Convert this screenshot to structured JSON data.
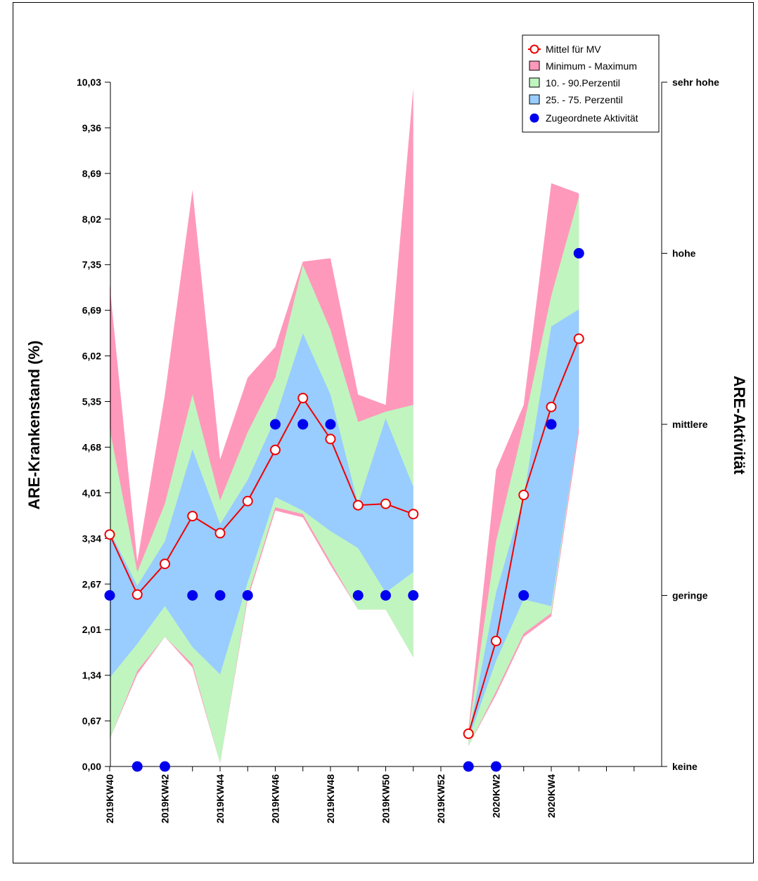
{
  "chart_data": {
    "type": "area",
    "xlabel": "",
    "ylabel": "ARE-Krankenstand (%)",
    "y2label": "ARE-Aktivität",
    "ylim": [
      0,
      10.03
    ],
    "y_ticks": [
      "0,00",
      "0,67",
      "1,34",
      "2,01",
      "2,67",
      "3,34",
      "4,01",
      "4,68",
      "5,35",
      "6,02",
      "6,69",
      "7,35",
      "8,02",
      "8,69",
      "9,36",
      "10,03"
    ],
    "y2_ticks": [
      "keine",
      "geringe",
      "mittlere",
      "hohe",
      "sehr hohe"
    ],
    "x_labels": [
      "2019KW40",
      "2019KW42",
      "2019KW44",
      "2019KW46",
      "2019KW48",
      "2019KW50",
      "2019KW52",
      "2020KW2",
      "2020KW4"
    ],
    "legend": [
      "Mittel für MV",
      "Minimum - Maximum",
      "10. - 90.Perzentil",
      "25. - 75. Perzentil",
      "Zugeordnete Aktivität"
    ],
    "legend_position": "top-right",
    "colors": {
      "minmax": "#FF99BB",
      "p10_90": "#C0F5C0",
      "p25_75": "#99CCFF",
      "mean": "#EE0000",
      "activity": "#0000EE"
    },
    "segments": [
      {
        "weeks": [
          0,
          1,
          2,
          3,
          4,
          5,
          6,
          7,
          8,
          9,
          10,
          11
        ],
        "min": [
          0.4,
          1.35,
          1.9,
          1.45,
          0.05,
          2.45,
          3.75,
          3.65,
          2.95,
          2.3,
          2.3,
          1.6
        ],
        "p10": [
          0.4,
          1.4,
          1.9,
          1.5,
          0.05,
          2.5,
          3.8,
          3.7,
          3.0,
          2.3,
          2.3,
          1.6
        ],
        "p25": [
          1.3,
          1.8,
          2.35,
          1.75,
          1.35,
          2.7,
          3.95,
          3.75,
          3.45,
          3.2,
          2.55,
          2.85
        ],
        "p75": [
          3.45,
          2.65,
          3.3,
          4.65,
          3.55,
          4.2,
          5.1,
          6.35,
          5.45,
          3.85,
          5.1,
          4.1
        ],
        "p90": [
          4.95,
          2.85,
          3.85,
          5.45,
          3.9,
          4.9,
          5.7,
          7.35,
          6.4,
          5.05,
          5.2,
          5.3
        ],
        "max": [
          7.05,
          3.0,
          5.45,
          8.45,
          4.5,
          5.7,
          6.15,
          7.4,
          7.45,
          5.45,
          5.3,
          9.95
        ],
        "mean": [
          3.4,
          2.52,
          2.97,
          3.67,
          3.42,
          3.89,
          4.64,
          5.4,
          4.8,
          3.83,
          3.85,
          3.7
        ]
      },
      {
        "weeks": [
          13,
          14,
          15,
          16,
          17
        ],
        "min": [
          0.3,
          1.05,
          1.9,
          2.2,
          4.9
        ],
        "p10": [
          0.3,
          1.1,
          1.95,
          2.25,
          5.0
        ],
        "p25": [
          0.4,
          1.55,
          2.45,
          2.35,
          5.0
        ],
        "p75": [
          0.45,
          2.55,
          3.95,
          6.45,
          6.7
        ],
        "p90": [
          0.5,
          3.3,
          5.0,
          6.9,
          8.35
        ],
        "max": [
          0.55,
          4.35,
          5.3,
          8.55,
          8.4
        ],
        "mean": [
          0.48,
          1.84,
          3.98,
          5.27,
          6.27
        ]
      }
    ],
    "activity": {
      "weeks": [
        0,
        1,
        2,
        3,
        4,
        5,
        6,
        7,
        8,
        9,
        10,
        11,
        13,
        14,
        15,
        16,
        17
      ],
      "levels": [
        1,
        0,
        0,
        1,
        1,
        1,
        2,
        2,
        2,
        1,
        1,
        1,
        0,
        0,
        1,
        2,
        3
      ]
    }
  }
}
